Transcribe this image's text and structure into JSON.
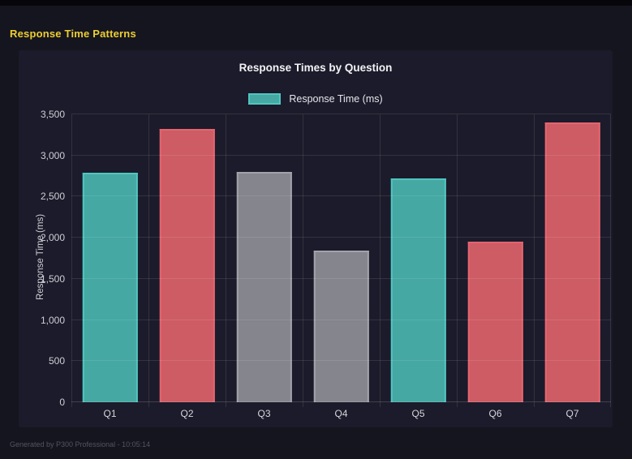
{
  "page": {
    "header_title": "Response Time Patterns",
    "footer": "Generated by P300 Professional - 10:05:14"
  },
  "colors": {
    "page_background": "#15151f",
    "top_strip": "#07070b",
    "panel_background": "#1b1b2b",
    "header_accent": "#edce31",
    "grid": "rgba(255,255,255,0.10)",
    "teal": "#45a8a3",
    "red": "#cd5c64",
    "gray": "#85858d"
  },
  "chart": {
    "title": "Response Times by Question",
    "legend_label": "Response Time (ms)",
    "y_axis_title": "Response Time (ms)"
  },
  "chart_data": {
    "type": "bar",
    "title": "Response Times by Question",
    "categories": [
      "Q1",
      "Q2",
      "Q3",
      "Q4",
      "Q5",
      "Q6",
      "Q7"
    ],
    "values": [
      2790,
      3320,
      2800,
      1840,
      2720,
      1950,
      3400
    ],
    "bar_colors": [
      "teal",
      "red",
      "gray",
      "gray",
      "teal",
      "red",
      "red"
    ],
    "palette": {
      "teal": {
        "fill": "#45a8a3",
        "border": "#52c5c0"
      },
      "red": {
        "fill": "#cd5c64",
        "border": "#e5646f"
      },
      "gray": {
        "fill": "#85858d",
        "border": "#a2a2aa"
      }
    },
    "legend": [
      {
        "label": "Response Time (ms)",
        "color": "#45a8a3"
      }
    ],
    "legend_position": "top",
    "xlabel": "",
    "ylabel": "Response Time (ms)",
    "ylim": [
      0,
      3500
    ],
    "ytick_step": 500,
    "ytick_labels": [
      "0",
      "500",
      "1,000",
      "1,500",
      "2,000",
      "2,500",
      "3,000",
      "3,500"
    ],
    "grid": true
  }
}
